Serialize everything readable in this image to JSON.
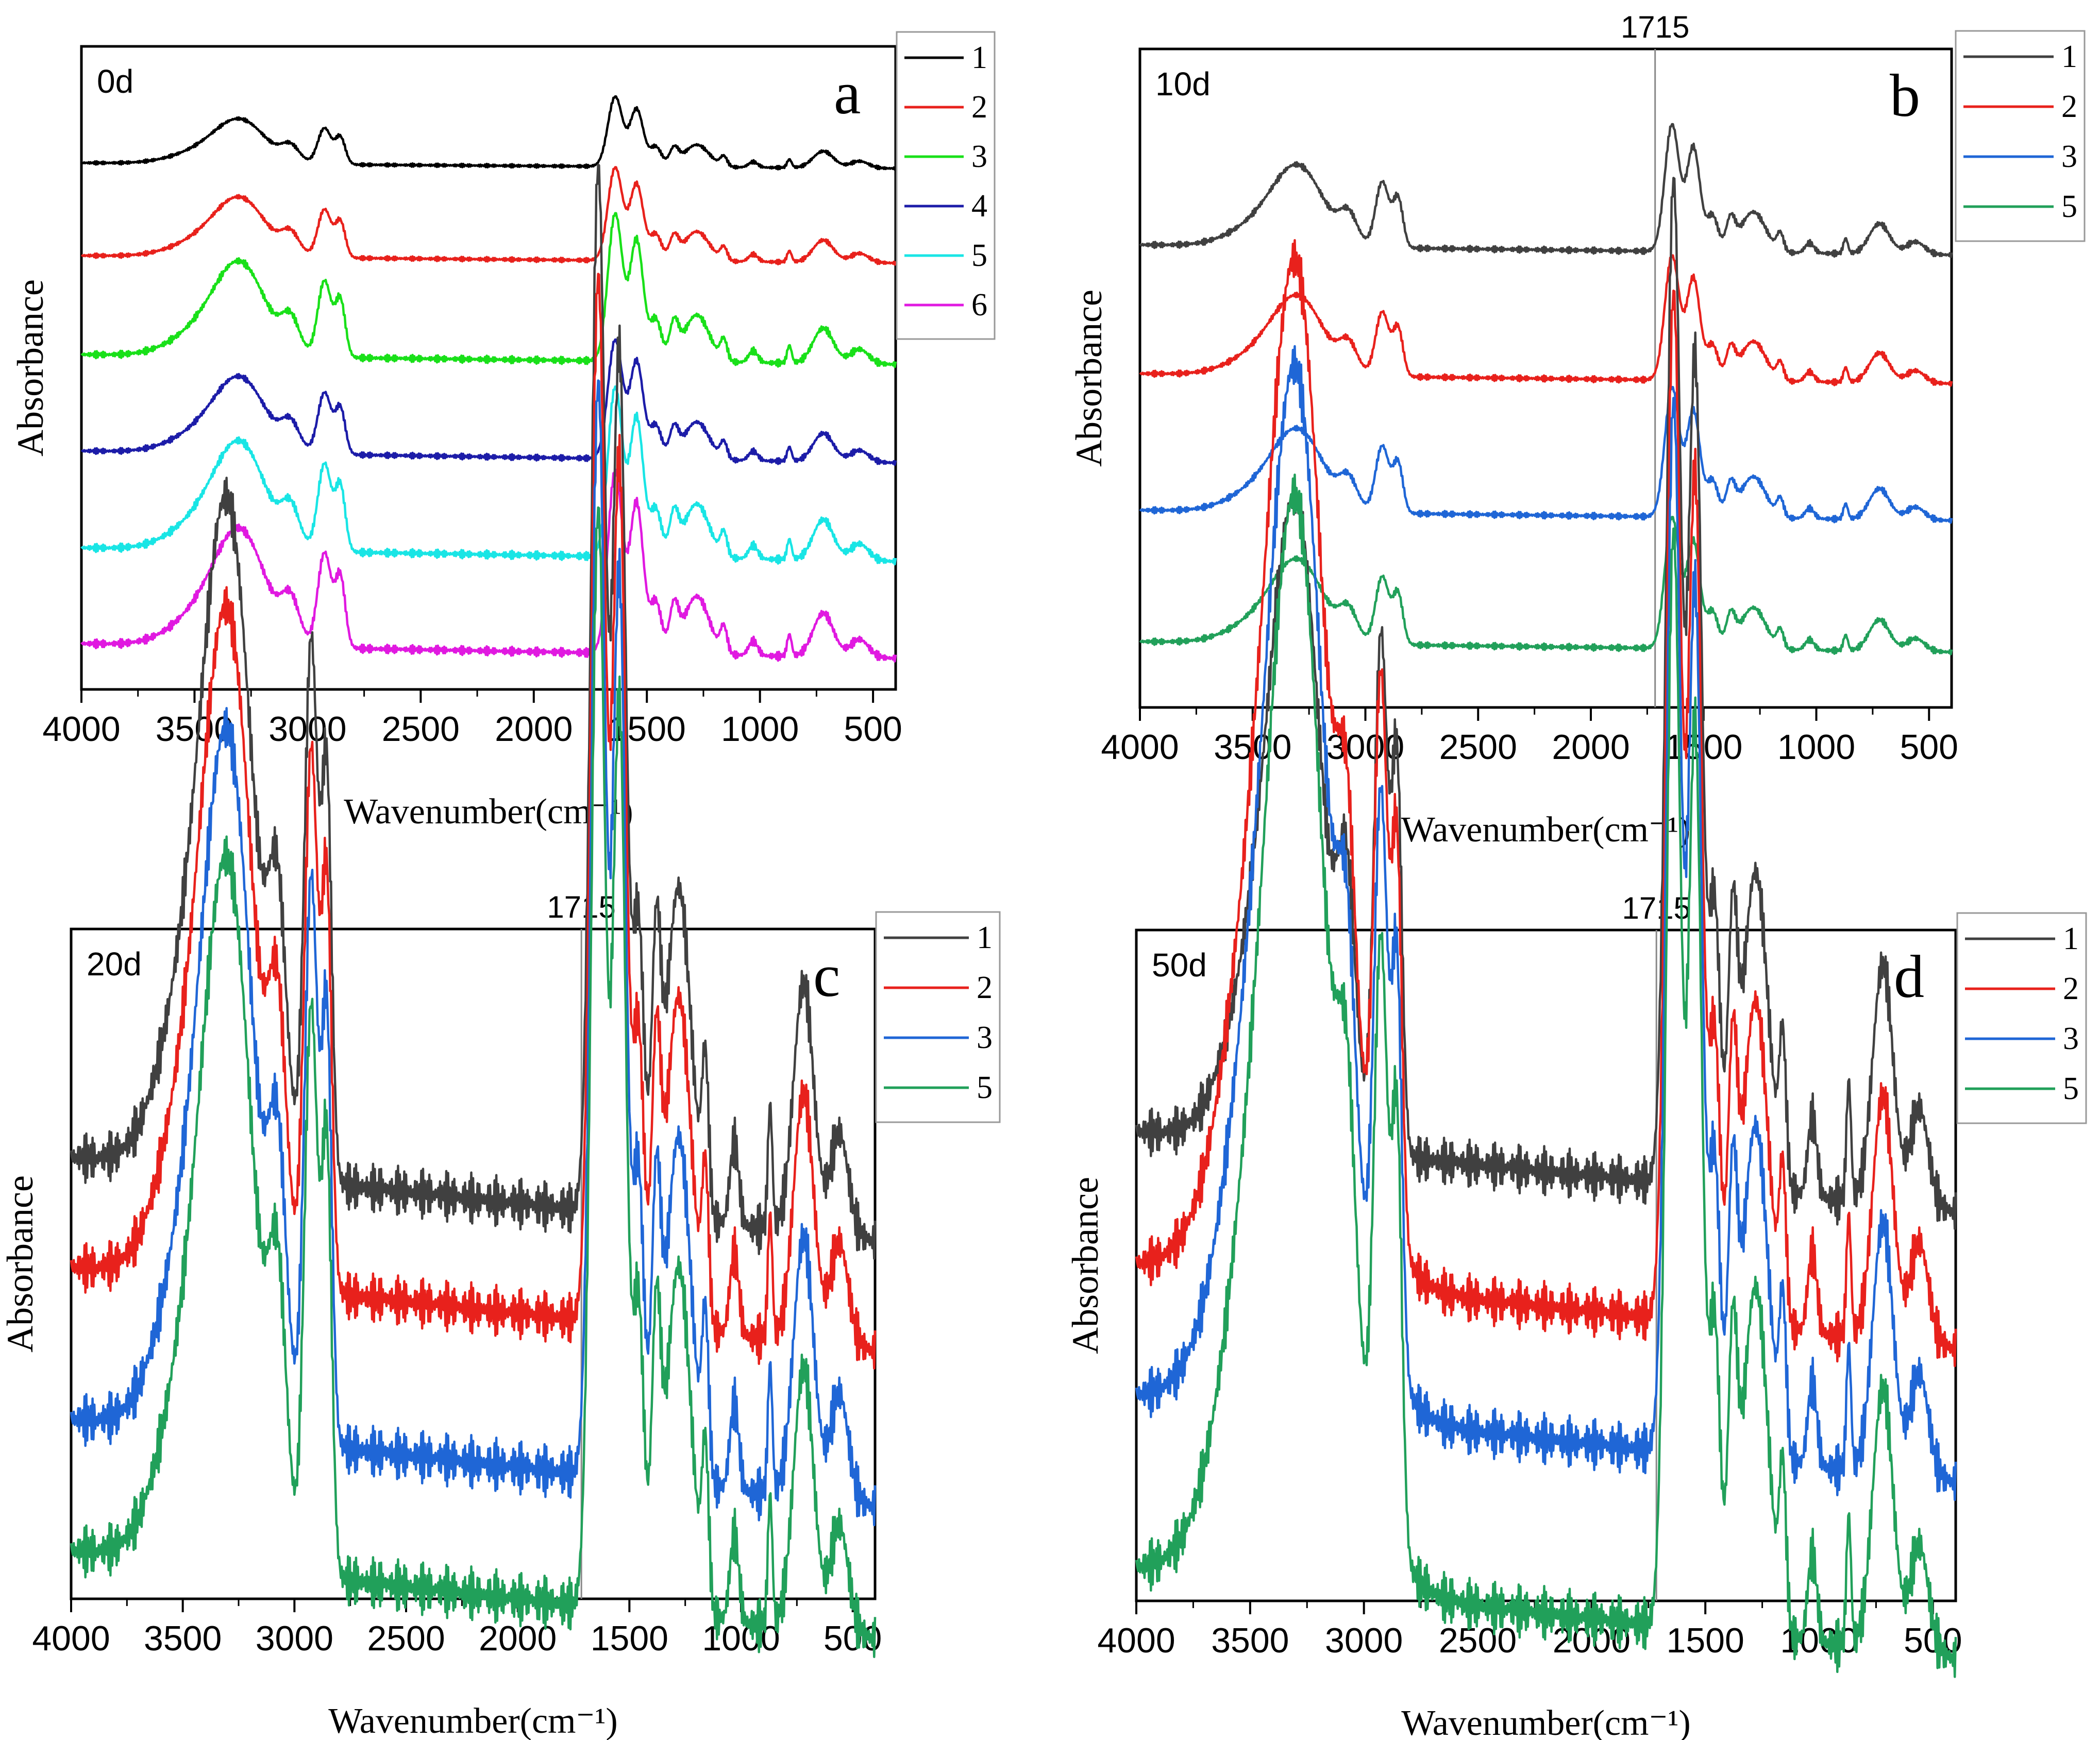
{
  "figure": {
    "panels": [
      {
        "id": "a",
        "letter": "a",
        "day": "0d",
        "reference_line": null
      },
      {
        "id": "b",
        "letter": "b",
        "day": "10d",
        "reference_line": {
          "x": 1715,
          "label": "1715"
        }
      },
      {
        "id": "c",
        "letter": "c",
        "day": "20d",
        "reference_line": {
          "x": 1715,
          "label": "1715"
        }
      },
      {
        "id": "d",
        "letter": "d",
        "day": "50d",
        "reference_line": {
          "x": 1715,
          "label": "1715"
        }
      }
    ]
  },
  "chart_data": [
    {
      "panel": "a",
      "type": "line",
      "title": "0d",
      "xlabel": "Wavenumber(cm⁻¹)",
      "ylabel": "Absorbance",
      "xlim": [
        4000,
        400
      ],
      "x_reversed": true,
      "xticks": [
        4000,
        3500,
        3000,
        2500,
        2000,
        1500,
        1000,
        500
      ],
      "y_ticks_shown": false,
      "stacked_offsets": true,
      "legend": {
        "position": "outside-right-top",
        "entries": [
          "1",
          "2",
          "3",
          "4",
          "5",
          "6"
        ]
      },
      "series": [
        {
          "name": "1",
          "color": "#000000",
          "baseline": 5.0,
          "amplitude": 1.0
        },
        {
          "name": "2",
          "color": "#e8211c",
          "baseline": 4.0,
          "amplitude": 1.0
        },
        {
          "name": "3",
          "color": "#19e019",
          "baseline": 3.0,
          "amplitude": 1.2
        },
        {
          "name": "4",
          "color": "#1c1ca8",
          "baseline": 2.0,
          "amplitude": 0.8
        },
        {
          "name": "5",
          "color": "#19e5e5",
          "baseline": 1.0,
          "amplitude": 1.0
        },
        {
          "name": "6",
          "color": "#e019e0",
          "baseline": 0.0,
          "amplitude": 1.0
        }
      ]
    },
    {
      "panel": "b",
      "type": "line",
      "title": "10d",
      "xlabel": "Wavenumber(cm⁻¹)",
      "ylabel": "Absorbance",
      "xlim": [
        4000,
        400
      ],
      "x_reversed": true,
      "xticks": [
        4000,
        3500,
        3000,
        2500,
        2000,
        1500,
        1000,
        500
      ],
      "y_ticks_shown": false,
      "stacked_offsets": true,
      "reference_line": 1715,
      "legend": {
        "position": "outside-right-top",
        "entries": [
          "1",
          "2",
          "3",
          "5"
        ]
      },
      "series": [
        {
          "name": "1",
          "color": "#404040",
          "baseline": 3.0,
          "amplitude": 1.0
        },
        {
          "name": "2",
          "color": "#e8211c",
          "baseline": 2.0,
          "amplitude": 1.0
        },
        {
          "name": "3",
          "color": "#1f66d6",
          "baseline": 1.0,
          "amplitude": 1.0
        },
        {
          "name": "5",
          "color": "#21a05a",
          "baseline": 0.0,
          "amplitude": 1.0
        }
      ]
    },
    {
      "panel": "c",
      "type": "line",
      "title": "20d",
      "xlabel": "Wavenumber(cm⁻¹)",
      "ylabel": "Absorbance",
      "xlim": [
        4000,
        400
      ],
      "x_reversed": true,
      "xticks": [
        4000,
        3500,
        3000,
        2500,
        2000,
        1500,
        1000,
        500
      ],
      "y_ticks_shown": false,
      "stacked_offsets": true,
      "reference_line": 1715,
      "legend": {
        "position": "outside-right-top",
        "entries": [
          "1",
          "2",
          "3",
          "5"
        ]
      },
      "series": [
        {
          "name": "1",
          "color": "#404040",
          "baseline": 3.0,
          "amplitude": 1.0
        },
        {
          "name": "2",
          "color": "#e8211c",
          "baseline": 2.0,
          "amplitude": 1.0
        },
        {
          "name": "3",
          "color": "#1f66d6",
          "baseline": 1.0,
          "amplitude": 1.0
        },
        {
          "name": "5",
          "color": "#21a05a",
          "baseline": 0.0,
          "amplitude": 1.0
        }
      ]
    },
    {
      "panel": "d",
      "type": "line",
      "title": "50d",
      "xlabel": "Wavenumber(cm⁻¹)",
      "ylabel": "Absorbance",
      "xlim": [
        4000,
        400
      ],
      "x_reversed": true,
      "xticks": [
        4000,
        3500,
        3000,
        2500,
        2000,
        1500,
        1000,
        500
      ],
      "y_ticks_shown": false,
      "stacked_offsets": true,
      "reference_line": 1715,
      "legend": {
        "position": "outside-right-top",
        "entries": [
          "1",
          "2",
          "3",
          "5"
        ]
      },
      "series": [
        {
          "name": "1",
          "color": "#404040",
          "baseline": 3.0,
          "amplitude": 1.0
        },
        {
          "name": "2",
          "color": "#e8211c",
          "baseline": 2.0,
          "amplitude": 1.0
        },
        {
          "name": "3",
          "color": "#1f66d6",
          "baseline": 1.0,
          "amplitude": 1.0
        },
        {
          "name": "5",
          "color": "#21a05a",
          "baseline": 0.0,
          "amplitude": 1.0
        }
      ]
    }
  ]
}
